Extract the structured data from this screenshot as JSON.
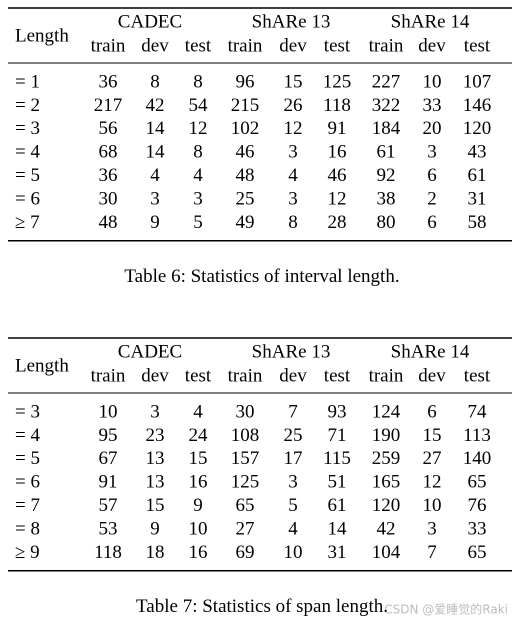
{
  "tables": [
    {
      "header": "Length",
      "groups": [
        "CADEC",
        "ShARe 13",
        "ShARe 14"
      ],
      "subheaders": [
        "train",
        "dev",
        "test",
        "train",
        "dev",
        "test",
        "train",
        "dev",
        "test"
      ],
      "rows": [
        {
          "label": "= 1",
          "values": [
            36,
            8,
            8,
            96,
            15,
            125,
            227,
            10,
            107
          ]
        },
        {
          "label": "= 2",
          "values": [
            217,
            42,
            54,
            215,
            26,
            118,
            322,
            33,
            146
          ]
        },
        {
          "label": "= 3",
          "values": [
            56,
            14,
            12,
            102,
            12,
            91,
            184,
            20,
            120
          ]
        },
        {
          "label": "= 4",
          "values": [
            68,
            14,
            8,
            46,
            3,
            16,
            61,
            3,
            43
          ]
        },
        {
          "label": "= 5",
          "values": [
            36,
            4,
            4,
            48,
            4,
            46,
            92,
            6,
            61
          ]
        },
        {
          "label": "= 6",
          "values": [
            30,
            3,
            3,
            25,
            3,
            12,
            38,
            2,
            31
          ]
        },
        {
          "label": "≥ 7",
          "values": [
            48,
            9,
            5,
            49,
            8,
            28,
            80,
            6,
            58
          ]
        }
      ],
      "caption": "Table 6: Statistics of interval length."
    },
    {
      "header": "Length",
      "groups": [
        "CADEC",
        "ShARe 13",
        "ShARe 14"
      ],
      "subheaders": [
        "train",
        "dev",
        "test",
        "train",
        "dev",
        "test",
        "train",
        "dev",
        "test"
      ],
      "rows": [
        {
          "label": "= 3",
          "values": [
            10,
            3,
            4,
            30,
            7,
            93,
            124,
            6,
            74
          ]
        },
        {
          "label": "= 4",
          "values": [
            95,
            23,
            24,
            108,
            25,
            71,
            190,
            15,
            113
          ]
        },
        {
          "label": "= 5",
          "values": [
            67,
            13,
            15,
            157,
            17,
            115,
            259,
            27,
            140
          ]
        },
        {
          "label": "= 6",
          "values": [
            91,
            13,
            16,
            125,
            3,
            51,
            165,
            12,
            65
          ]
        },
        {
          "label": "= 7",
          "values": [
            57,
            15,
            9,
            65,
            5,
            61,
            120,
            10,
            76
          ]
        },
        {
          "label": "= 8",
          "values": [
            53,
            9,
            10,
            27,
            4,
            14,
            42,
            3,
            33
          ]
        },
        {
          "label": "≥ 9",
          "values": [
            118,
            18,
            16,
            69,
            10,
            31,
            104,
            7,
            65
          ]
        }
      ],
      "caption": "Table 7: Statistics of span length."
    }
  ],
  "watermark": "CSDN @爱睡觉的Raki"
}
